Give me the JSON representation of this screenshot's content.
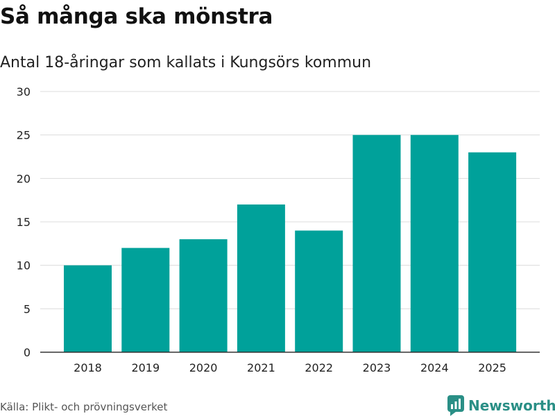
{
  "chart_data": {
    "type": "bar",
    "title": "Så många ska mönstra",
    "subtitle": "Antal 18-åringar som kallats i Kungsörs kommun",
    "categories": [
      "2018",
      "2019",
      "2020",
      "2021",
      "2022",
      "2023",
      "2024",
      "2025"
    ],
    "values": [
      10,
      12,
      13,
      17,
      14,
      25,
      25,
      23
    ],
    "yticks": [
      0,
      5,
      10,
      15,
      20,
      25,
      30
    ],
    "ylim": [
      0,
      30
    ],
    "xlabel": "",
    "ylabel": "",
    "grid": true,
    "bar_color": "#00a19a"
  },
  "footer": {
    "source": "Källa: Plikt- och prövningsverket",
    "brand": "Newsworthy",
    "brand_color": "#2a8f86"
  }
}
